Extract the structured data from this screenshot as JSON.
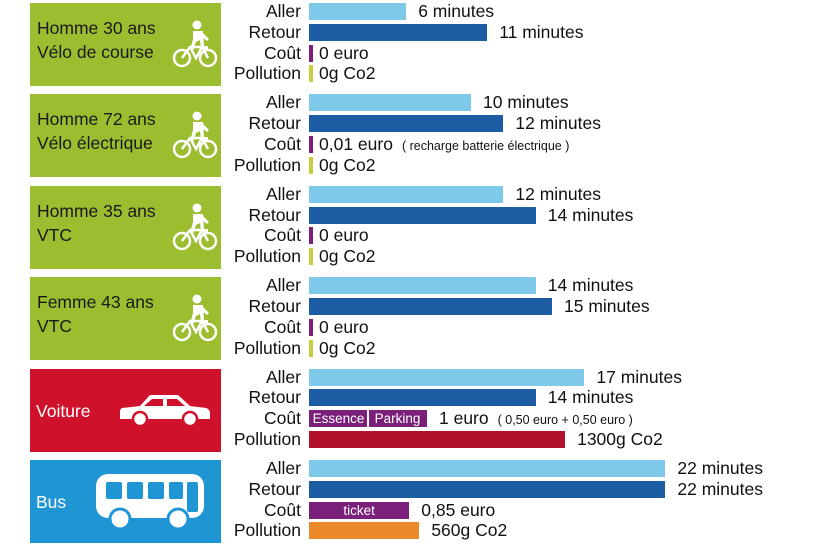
{
  "colors": {
    "aller": "#7ec8ea",
    "retour": "#1c5ca3",
    "cout": "#7a1f7a",
    "pollution_zero": "#c4cf3c",
    "pollution_voiture": "#b3102b",
    "pollution_bus": "#ea8a2a",
    "panel_velo": "#9bbd2f",
    "panel_voiture": "#d0112b",
    "panel_bus": "#1f95d4"
  },
  "chart_data": {
    "type": "bar",
    "orientation": "horizontal",
    "categories": [
      "Aller",
      "Retour",
      "Coût",
      "Pollution"
    ],
    "groups": [
      {
        "label_lines": [
          "Homme 30 ans",
          "Vélo de course"
        ],
        "icon": "bicycle-rider-icon",
        "aller_minutes": 6,
        "retour_minutes": 11,
        "aller_text": "6 minutes",
        "retour_text": "11 minutes",
        "cout_euro": 0,
        "cout_text": "0 euro",
        "cout_note": "",
        "cout_segments": [],
        "pollution_g_co2": 0,
        "pollution_text": "0g Co2"
      },
      {
        "label_lines": [
          "Homme 72 ans",
          "Vélo électrique"
        ],
        "icon": "bicycle-rider-icon",
        "aller_minutes": 10,
        "retour_minutes": 12,
        "aller_text": "10 minutes",
        "retour_text": "12 minutes",
        "cout_euro": 0.01,
        "cout_text": "0,01 euro",
        "cout_note": "( recharge batterie électrique )",
        "cout_segments": [],
        "pollution_g_co2": 0,
        "pollution_text": "0g Co2"
      },
      {
        "label_lines": [
          "Homme 35 ans",
          "VTC"
        ],
        "icon": "bicycle-rider-icon",
        "aller_minutes": 12,
        "retour_minutes": 14,
        "aller_text": "12 minutes",
        "retour_text": "14 minutes",
        "cout_euro": 0,
        "cout_text": "0 euro",
        "cout_note": "",
        "cout_segments": [],
        "pollution_g_co2": 0,
        "pollution_text": "0g Co2"
      },
      {
        "label_lines": [
          "Femme 43 ans",
          "VTC"
        ],
        "icon": "bicycle-rider-icon",
        "aller_minutes": 14,
        "retour_minutes": 15,
        "aller_text": "14 minutes",
        "retour_text": "15 minutes",
        "cout_euro": 0,
        "cout_text": "0 euro",
        "cout_note": "",
        "cout_segments": [],
        "pollution_g_co2": 0,
        "pollution_text": "0g Co2"
      },
      {
        "label_lines": [
          "Voiture"
        ],
        "icon": "car-icon",
        "aller_minutes": 17,
        "retour_minutes": 14,
        "aller_text": "17 minutes",
        "retour_text": "14 minutes",
        "cout_euro": 1,
        "cout_text": "1 euro",
        "cout_note": "( 0,50 euro + 0,50 euro )",
        "cout_segments": [
          {
            "label": "Essence",
            "value": 0.5
          },
          {
            "label": "Parking",
            "value": 0.5
          }
        ],
        "pollution_g_co2": 1300,
        "pollution_text": "1300g Co2"
      },
      {
        "label_lines": [
          "Bus"
        ],
        "icon": "bus-icon",
        "aller_minutes": 22,
        "retour_minutes": 22,
        "aller_text": "22 minutes",
        "retour_text": "22 minutes",
        "cout_euro": 0.85,
        "cout_text": "0,85 euro",
        "cout_note": "",
        "cout_segments": [
          {
            "label": "ticket",
            "value": 0.85
          }
        ],
        "pollution_g_co2": 560,
        "pollution_text": "560g Co2"
      }
    ]
  }
}
